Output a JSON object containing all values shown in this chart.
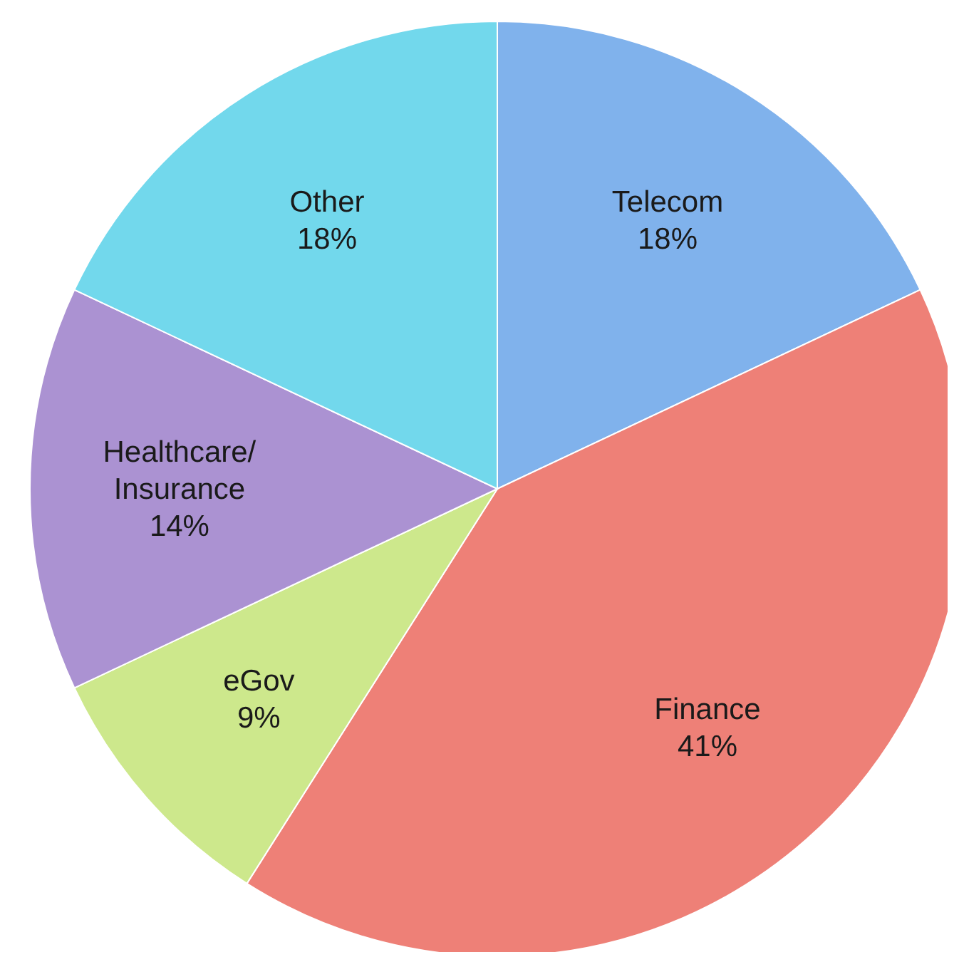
{
  "chart_data": {
    "type": "pie",
    "categories": [
      "Telecom",
      "Finance",
      "eGov",
      "Healthcare/\nInsurance",
      "Other"
    ],
    "values": [
      18,
      41,
      9,
      14,
      18
    ],
    "colors": [
      "#80b2ec",
      "#ee8077",
      "#cde88c",
      "#ab92d2",
      "#72d8ec"
    ],
    "value_labels": [
      "18%",
      "41%",
      "9%",
      "14%",
      "18%"
    ],
    "legend": false
  }
}
